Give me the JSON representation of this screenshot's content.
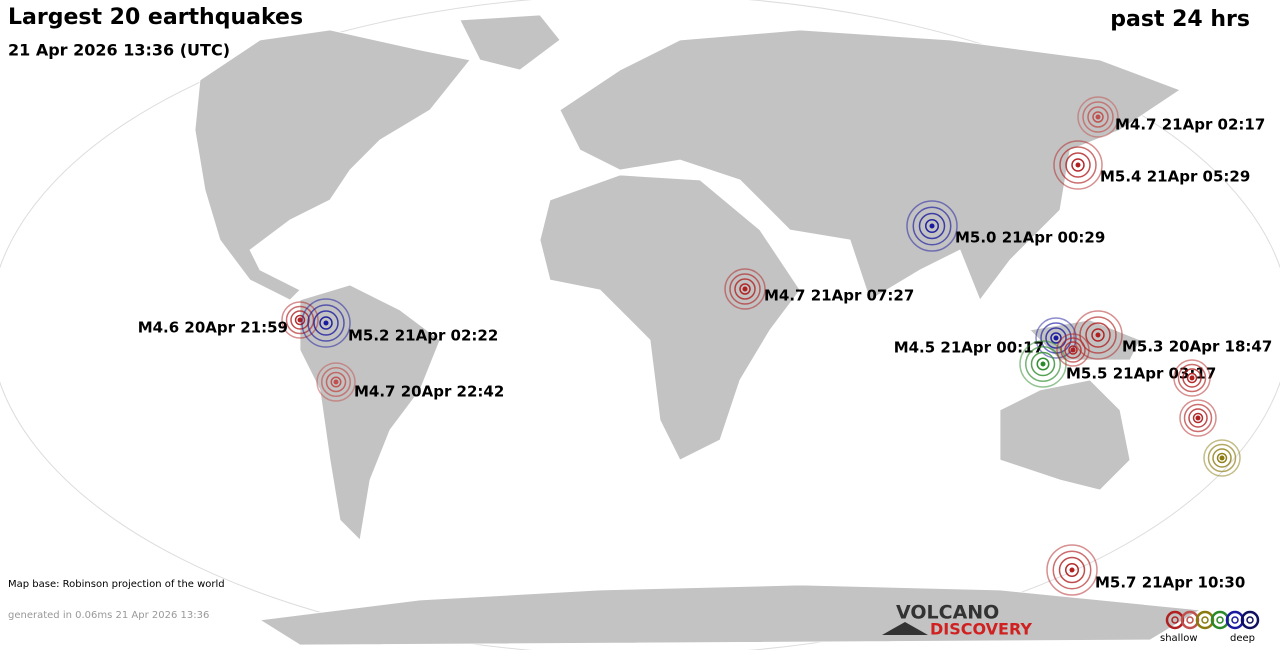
{
  "header": {
    "title": "Largest 20 earthquakes",
    "subtitle": "21 Apr 2026 13:36 (UTC)",
    "period": "past 24 hrs"
  },
  "quakes": [
    {
      "label": "M4.7 21Apr 02:17",
      "color": "#c0504d"
    },
    {
      "label": "M5.4 21Apr 05:29",
      "color": "#b02020"
    },
    {
      "label": "M5.0 21Apr 00:29",
      "color": "#1a1aa0"
    },
    {
      "label": "M4.7 21Apr 07:27",
      "color": "#b02020"
    },
    {
      "label": "M4.6 20Apr 21:59",
      "color": "#b02020"
    },
    {
      "label": "M5.2 21Apr 02:22",
      "color": "#1a1aa0"
    },
    {
      "label": "M4.7 20Apr 22:42",
      "color": "#c0504d"
    },
    {
      "label": "M4.5 21Apr 00:17",
      "color": "#1a1aa0"
    },
    {
      "label": "M5.3 20Apr 18:47",
      "color": "#b02020"
    },
    {
      "label": "M5.5 21Apr 03:17",
      "color": "#2a8a2a"
    },
    {
      "color": "#b02020"
    },
    {
      "color": "#b02020"
    },
    {
      "color": "#b02020"
    },
    {
      "color": "#8a7a10"
    },
    {
      "label": "M5.7 21Apr 10:30",
      "color": "#b02020"
    }
  ],
  "footer": {
    "map_base": "Map base: Robinson projection of the world",
    "generated": "generated in 0.06ms 21 Apr 2026 13:36"
  },
  "logo": {
    "line1": "VOLCANO",
    "line2": "DISCOVERY"
  },
  "legend": {
    "shallow": "shallow",
    "deep": "deep",
    "colors": [
      "#b02020",
      "#c0504d",
      "#8a7a10",
      "#2a8a2a",
      "#1a1aa0",
      "#101060"
    ]
  }
}
